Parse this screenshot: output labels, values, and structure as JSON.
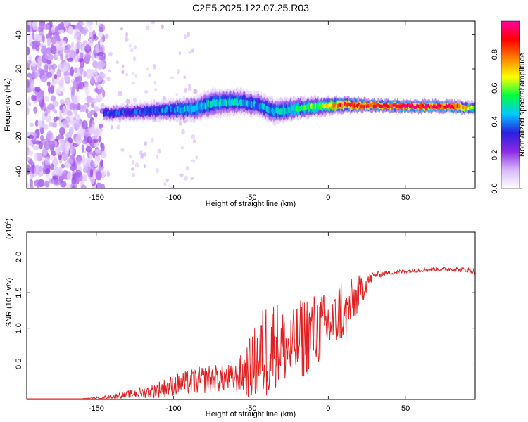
{
  "title": "C2E5.2025.122.07.25.R03",
  "chart_data": [
    {
      "type": "heatmap",
      "xlabel": "Height of straight line (km)",
      "ylabel": "Frequency (Hz)",
      "xlim": [
        -195,
        95
      ],
      "ylim": [
        -50,
        48
      ],
      "x_ticks": [
        -150,
        -100,
        -50,
        0,
        50
      ],
      "x_tick_labels": [
        "-150",
        "-100",
        "-50",
        "0",
        "50"
      ],
      "y_ticks": [
        -40,
        -20,
        0,
        20,
        40
      ],
      "y_tick_labels": [
        "-40",
        "-20",
        "0",
        "20",
        "40"
      ],
      "colorbar": {
        "label": "Normalized spectral amplitude",
        "range": [
          0,
          1
        ],
        "ticks": [
          0,
          0.2,
          0.4,
          0.6,
          0.8
        ],
        "tick_labels": [
          "0.0",
          "0.2",
          "0.4",
          "0.6",
          "0.8"
        ],
        "colormap": [
          "#ffffff",
          "#d8b8ff",
          "#8a2be2",
          "#2a1fe0",
          "#00c8ff",
          "#00ff40",
          "#ffff00",
          "#ff8000",
          "#ff0000",
          "#ff00a0"
        ]
      },
      "noise_region": {
        "x_range": [
          -195,
          -145
        ],
        "freq_range": [
          -50,
          48
        ],
        "amplitude": 0.15
      },
      "signal_track": [
        {
          "x": -145,
          "freq": -6,
          "amp": 0.35,
          "width": 5
        },
        {
          "x": -120,
          "freq": -5,
          "amp": 0.35,
          "width": 6
        },
        {
          "x": -100,
          "freq": -4,
          "amp": 0.4,
          "width": 7
        },
        {
          "x": -85,
          "freq": -3,
          "amp": 0.45,
          "width": 8
        },
        {
          "x": -75,
          "freq": 0,
          "amp": 0.45,
          "width": 9
        },
        {
          "x": -60,
          "freq": 1,
          "amp": 0.45,
          "width": 8
        },
        {
          "x": -45,
          "freq": -1,
          "amp": 0.4,
          "width": 8
        },
        {
          "x": -35,
          "freq": -5,
          "amp": 0.45,
          "width": 8
        },
        {
          "x": -20,
          "freq": -3,
          "amp": 0.5,
          "width": 7
        },
        {
          "x": -5,
          "freq": -2,
          "amp": 0.6,
          "width": 6
        },
        {
          "x": 10,
          "freq": -1,
          "amp": 0.85,
          "width": 5
        },
        {
          "x": 30,
          "freq": -1.5,
          "amp": 0.9,
          "width": 4
        },
        {
          "x": 60,
          "freq": -2,
          "amp": 0.95,
          "width": 4
        },
        {
          "x": 80,
          "freq": -2,
          "amp": 0.9,
          "width": 4
        },
        {
          "x": 95,
          "freq": -3,
          "amp": 0.6,
          "width": 4
        }
      ]
    },
    {
      "type": "line",
      "xlabel": "Height of straight line (km)",
      "ylabel": "SNR (10 * v/v)",
      "y_multiplier_label": "(x10",
      "y_multiplier_exp": "4",
      "xlim": [
        -195,
        95
      ],
      "ylim": [
        0,
        2.35
      ],
      "x_ticks": [
        -150,
        -100,
        -50,
        0,
        50
      ],
      "x_tick_labels": [
        "-150",
        "-100",
        "-50",
        "0",
        "50"
      ],
      "y_ticks": [
        0.5,
        1.0,
        1.5,
        2.0
      ],
      "y_tick_labels": [
        "0.5",
        "1.0",
        "1.5",
        "2.0"
      ],
      "line_color": "#e02020",
      "series": [
        {
          "x": [
            -195,
            -180,
            -160,
            -150,
            -140,
            -130,
            -120,
            -110,
            -100,
            -90,
            -80,
            -70,
            -60,
            -50,
            -45,
            -40,
            -35,
            -30,
            -25,
            -20,
            -15,
            -10,
            -5,
            0,
            5,
            8,
            10,
            15,
            20,
            25,
            30,
            40,
            50,
            60,
            70,
            80,
            90,
            95
          ],
          "y": [
            0.01,
            0.01,
            0.01,
            0.02,
            0.04,
            0.07,
            0.1,
            0.14,
            0.2,
            0.24,
            0.28,
            0.3,
            0.3,
            0.45,
            0.55,
            0.7,
            0.8,
            0.75,
            0.7,
            0.8,
            0.9,
            0.95,
            1.0,
            1.05,
            1.1,
            1.3,
            1.1,
            1.35,
            1.5,
            1.65,
            1.75,
            1.78,
            1.8,
            1.82,
            1.83,
            1.83,
            1.82,
            1.8
          ],
          "noise": [
            0,
            0,
            0,
            0.01,
            0.03,
            0.05,
            0.08,
            0.12,
            0.15,
            0.18,
            0.2,
            0.2,
            0.2,
            0.45,
            0.6,
            0.75,
            0.65,
            0.55,
            0.5,
            0.55,
            0.6,
            0.55,
            0.5,
            0.45,
            0.4,
            0.5,
            0.4,
            0.35,
            0.25,
            0.15,
            0.05,
            0.03,
            0.03,
            0.03,
            0.03,
            0.03,
            0.04,
            0.05
          ]
        }
      ]
    }
  ]
}
